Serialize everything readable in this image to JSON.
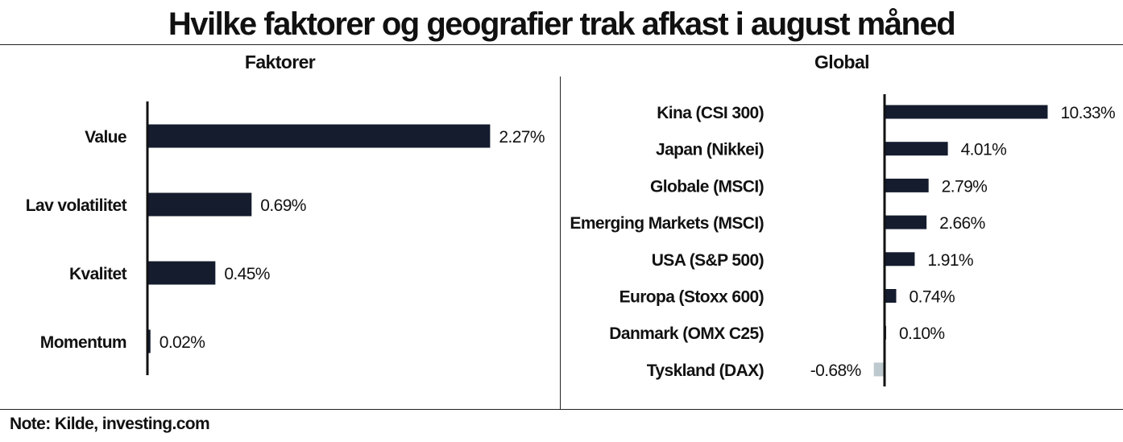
{
  "title": "Hvilke faktorer og geografier trak afkast i august måned",
  "note": "Note: Kilde, investing.com",
  "colors": {
    "bar": "#141c2e",
    "negative_bar": "#bdc8cf",
    "axis": "#111111",
    "text": "#111111"
  },
  "chart_data": [
    {
      "type": "bar",
      "orientation": "horizontal",
      "title": "Faktorer",
      "categories": [
        "Value",
        "Lav volatilitet",
        "Kvalitet",
        "Momentum"
      ],
      "values": [
        2.27,
        0.69,
        0.45,
        0.02
      ],
      "value_labels": [
        "2.27%",
        "0.69%",
        "0.45%",
        "0.02%"
      ],
      "unit": "%",
      "grid": false,
      "legend": "none"
    },
    {
      "type": "bar",
      "orientation": "horizontal",
      "title": "Global",
      "categories": [
        "Kina (CSI 300)",
        "Japan (Nikkei)",
        "Globale (MSCI)",
        "Emerging Markets (MSCI)",
        "USA (S&P 500)",
        "Europa (Stoxx 600)",
        "Danmark (OMX C25)",
        "Tyskland (DAX)"
      ],
      "values": [
        10.33,
        4.01,
        2.79,
        2.66,
        1.91,
        0.74,
        0.1,
        -0.68
      ],
      "value_labels": [
        "10.33%",
        "4.01%",
        "2.79%",
        "2.66%",
        "1.91%",
        "0.74%",
        "0.10%",
        "-0.68%"
      ],
      "unit": "%",
      "grid": false,
      "legend": "none"
    }
  ]
}
